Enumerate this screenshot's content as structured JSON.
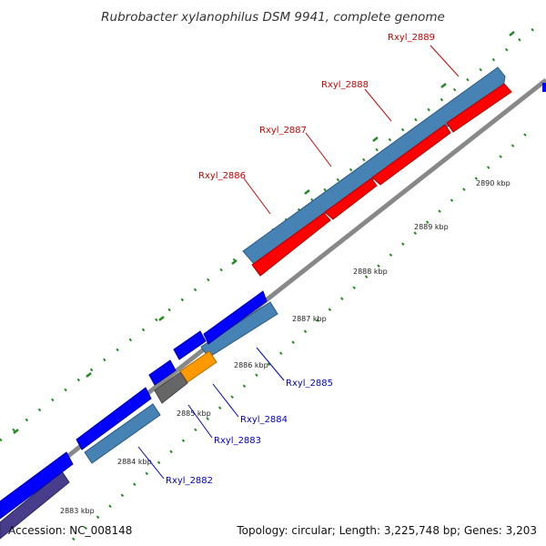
{
  "title": "Rubrobacter xylanophilus DSM 9941, complete genome",
  "footer": {
    "accession": "Accession: NC_008148",
    "summary": "Topology: circular; Length: 3,225,748 bp; Genes: 3,203"
  },
  "colors": {
    "forward_gene": "#4682b4",
    "forward_feature_red": "#ff0000",
    "reverse_feature_blue": "#0000ff",
    "orange_feature": "#ff9900",
    "gray_feature": "#666666",
    "purple_feature": "#483d8b",
    "backbone": "#888888",
    "tick": "#228b22",
    "label_red": "#cc0000",
    "label_blue": "#0000cc"
  },
  "ticks": [
    {
      "label": "2883 kbp"
    },
    {
      "label": "2884 kbp"
    },
    {
      "label": "2885 kbp"
    },
    {
      "label": "2886 kbp"
    },
    {
      "label": "2887 kbp"
    },
    {
      "label": "2888 kbp"
    },
    {
      "label": "2889 kbp"
    },
    {
      "label": "2890 kbp"
    }
  ],
  "gene_labels": [
    {
      "label": "Rxyl_2889",
      "color": "#cc0000"
    },
    {
      "label": "Rxyl_2888",
      "color": "#cc0000"
    },
    {
      "label": "Rxyl_2887",
      "color": "#cc0000"
    },
    {
      "label": "Rxyl_2886",
      "color": "#cc0000"
    },
    {
      "label": "Rxyl_2885",
      "color": "#0000cc"
    },
    {
      "label": "Rxyl_2884",
      "color": "#0000cc"
    },
    {
      "label": "Rxyl_2883",
      "color": "#0000cc"
    },
    {
      "label": "Rxyl_2882",
      "color": "#0000cc"
    }
  ]
}
